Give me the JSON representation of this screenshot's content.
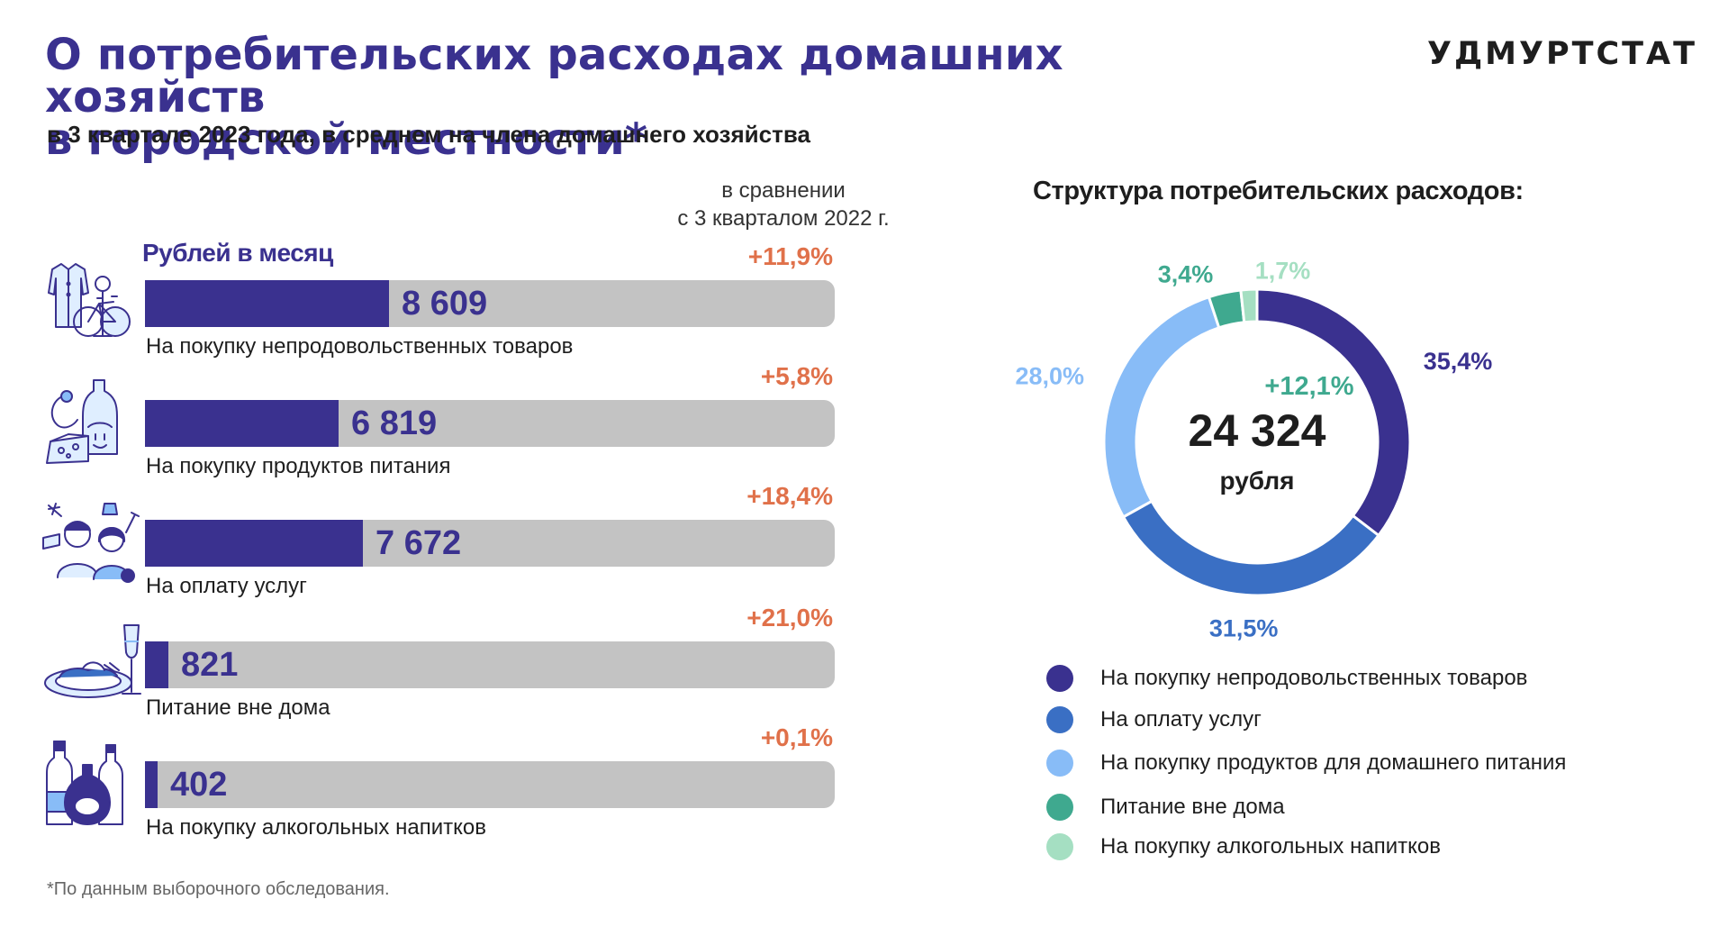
{
  "header": {
    "title": "О потребительских расходах домашних хозяйств в городской местности*",
    "subtitle": "в 3 квартале 2023 года, в среднем на члена домашнего хозяйства",
    "brand": "УДМУРТСТАТ"
  },
  "left_panel": {
    "compare_note_line1": "в сравнении",
    "compare_note_line2": "с 3 кварталом 2022 г.",
    "unit_label": "Рублей в месяц"
  },
  "right_panel": {
    "title": "Структура потребительских расходов:",
    "total_value": "24 324",
    "total_unit": "рубля",
    "total_change": "+12,1%"
  },
  "footnote": "*По данным выборочного обследования.",
  "colors": {
    "primary": "#3a318f",
    "track": "#c3c3c3",
    "change": "#e0714a",
    "services": "#3a6fc4",
    "food": "#88bcf7",
    "eating_out": "#3fa98f",
    "alcohol": "#a5dfc2"
  },
  "chart_data": [
    {
      "type": "bar",
      "orientation": "horizontal",
      "unit": "Рублей в месяц",
      "categories": [
        "На покупку непродовольственных товаров",
        "На покупку продуктов питания",
        "На оплату услуг",
        "Питание вне дома",
        "На покупку алкогольных напитков"
      ],
      "values": [
        8609,
        6819,
        7672,
        821,
        402
      ],
      "value_labels": [
        "8 609",
        "6 819",
        "7 672",
        "821",
        "402"
      ],
      "changes": [
        "+11,9%",
        "+5,8%",
        "+18,4%",
        "+21,0%",
        "+0,1%"
      ],
      "icons": [
        "clothing-bicycle-icon",
        "groceries-icon",
        "services-people-icon",
        "plate-wine-icon",
        "bottles-icon"
      ],
      "xlim": [
        0,
        24324
      ]
    },
    {
      "type": "pie",
      "donut": true,
      "title": "Структура потребительских расходов:",
      "center_value": "24 324",
      "center_unit": "рубля",
      "center_change": "+12,1%",
      "slices": [
        {
          "label": "На покупку непродовольственных товаров",
          "value": 35.4,
          "display": "35,4%",
          "color": "#3a318f"
        },
        {
          "label": "На оплату услуг",
          "value": 31.5,
          "display": "31,5%",
          "color": "#3a6fc4"
        },
        {
          "label": "На покупку продуктов для домашнего питания",
          "value": 28.0,
          "display": "28,0%",
          "color": "#88bcf7"
        },
        {
          "label": "Питание вне дома",
          "value": 3.4,
          "display": "3,4%",
          "color": "#3fa98f"
        },
        {
          "label": "На покупку алкогольных напитков",
          "value": 1.7,
          "display": "1,7%",
          "color": "#a5dfc2"
        }
      ],
      "legend_position": "bottom"
    }
  ]
}
